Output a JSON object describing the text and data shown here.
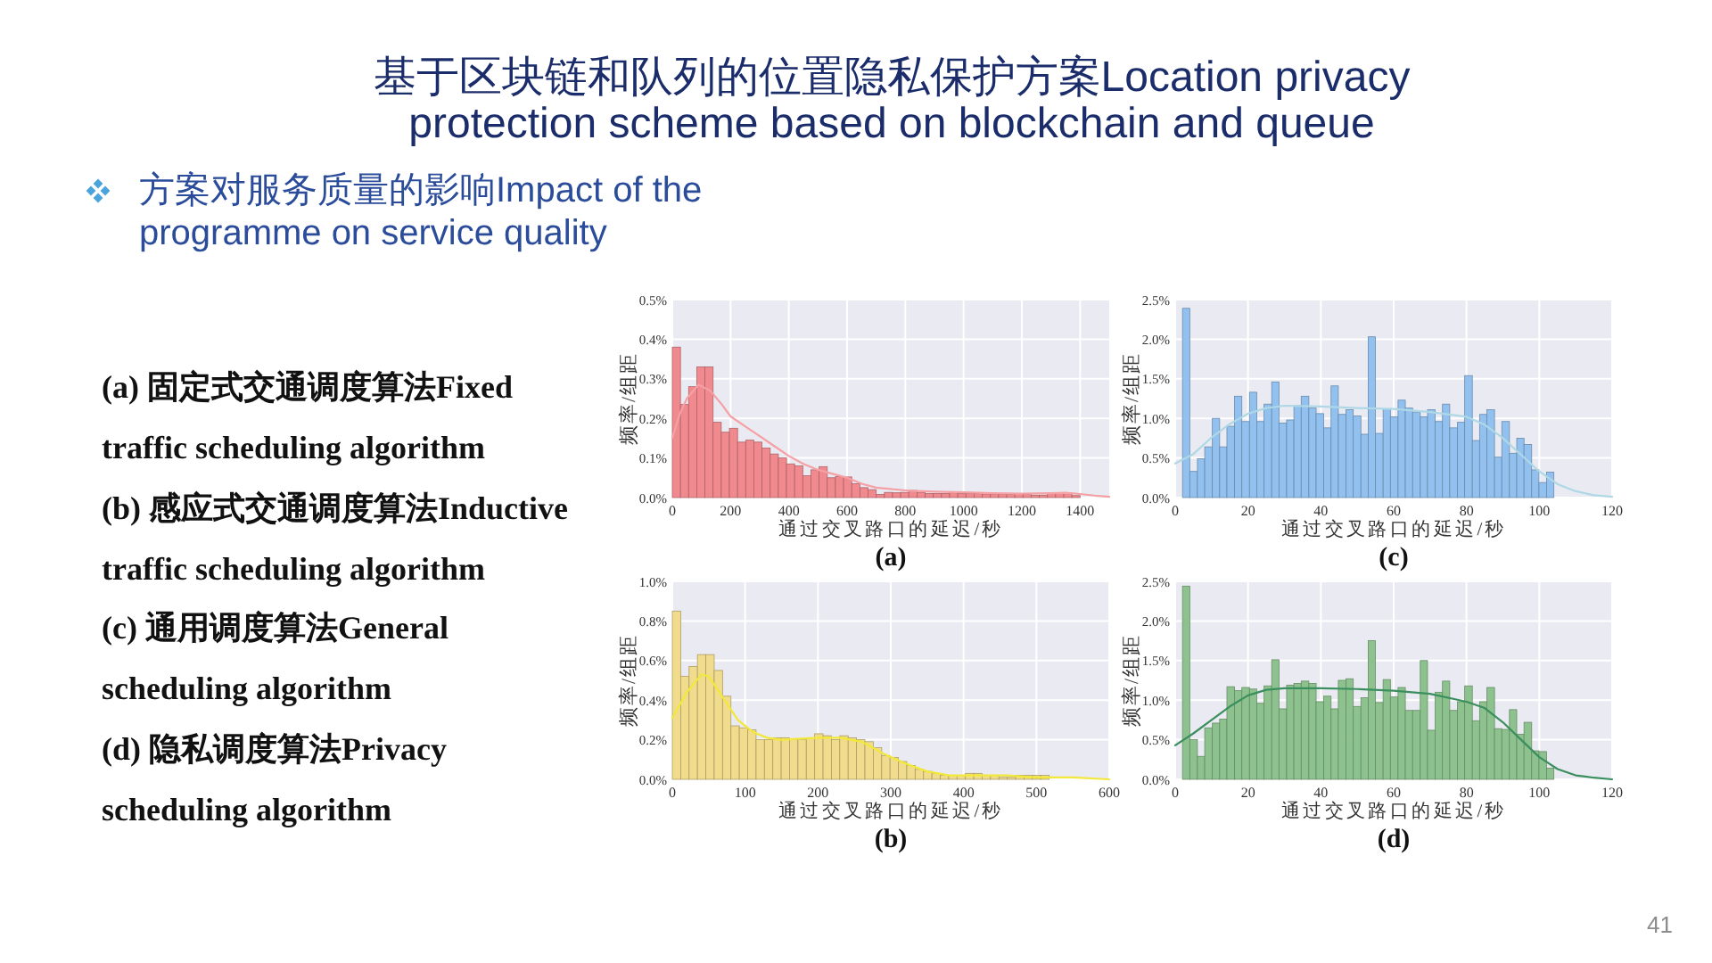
{
  "chart_data": [
    {
      "type": "other",
      "title": "基于区块链和队列的位置隐私保护方案Location privacy protection scheme based on blockchain and queue",
      "subtitle": "方案对服务质量的影响Impact of the programme on service quality",
      "annotations": [
        "(a) 固定式交通调度算法Fixed traffic scheduling algorithm",
        "(b) 感应式交通调度算法Inductive traffic scheduling algorithm",
        "(c) 通用调度算法General scheduling algorithm",
        "(d) 隐私调度算法Privacy scheduling algorithm",
        "41"
      ]
    },
    {
      "type": "histogram",
      "xlabel": "通过交叉路口的延迟/秒",
      "ylabel": "频率/组距",
      "annotations": [
        "(a)"
      ],
      "xlim": [
        0,
        1500
      ],
      "xticks": [
        0,
        200,
        400,
        600,
        800,
        1000,
        1200,
        1400
      ],
      "ylim": [
        0,
        0.5
      ],
      "yticks": [
        {
          "value": 0,
          "label": "0.0%"
        },
        {
          "value": 0.1,
          "label": "0.1%"
        },
        {
          "value": 0.2,
          "label": "0.2%"
        },
        {
          "value": 0.3,
          "label": "0.3%"
        },
        {
          "value": 0.4,
          "label": "0.4%"
        },
        {
          "value": 0.5,
          "label": "0.5%"
        }
      ],
      "grid": true,
      "bins": [
        0,
        28,
        56,
        84,
        112,
        140,
        168,
        196,
        224,
        252,
        280,
        308,
        336,
        364,
        392,
        420,
        448,
        476,
        504,
        532,
        560,
        588,
        616,
        644,
        672,
        700,
        728,
        756,
        784,
        812,
        840,
        868,
        896,
        924,
        952,
        980,
        1008,
        1036,
        1064,
        1092,
        1120,
        1148,
        1176,
        1204,
        1232,
        1260,
        1288,
        1316,
        1344,
        1372,
        1400
      ],
      "series": [
        {
          "type": "histogram",
          "color": "#f08a8e",
          "values": [
            0.38,
            0.235,
            0.28,
            0.33,
            0.33,
            0.19,
            0.165,
            0.175,
            0.14,
            0.145,
            0.14,
            0.125,
            0.11,
            0.1,
            0.085,
            0.08,
            0.055,
            0.07,
            0.078,
            0.05,
            0.053,
            0.052,
            0.035,
            0.025,
            0.02,
            0.008,
            0.013,
            0.012,
            0.013,
            0.018,
            0.013,
            0.01,
            0.01,
            0.01,
            0.012,
            0.01,
            0.01,
            0.01,
            0.009,
            0.009,
            0.009,
            0.008,
            0.01,
            0.008,
            0.006,
            0.006,
            0.012,
            0.012,
            0.011,
            0.005
          ]
        },
        {
          "type": "line",
          "color": "#f4a0a4",
          "x": [
            0,
            25,
            50,
            90,
            130,
            170,
            200,
            250,
            300,
            350,
            400,
            450,
            500,
            550,
            600,
            650,
            700,
            800,
            900,
            1000,
            1100,
            1200,
            1300,
            1350,
            1400,
            1450,
            1500
          ],
          "values": [
            0.15,
            0.21,
            0.25,
            0.285,
            0.27,
            0.235,
            0.205,
            0.18,
            0.155,
            0.13,
            0.105,
            0.085,
            0.07,
            0.06,
            0.05,
            0.035,
            0.025,
            0.018,
            0.015,
            0.013,
            0.011,
            0.01,
            0.011,
            0.012,
            0.009,
            0.005,
            0.002
          ]
        }
      ]
    },
    {
      "type": "histogram",
      "xlabel": "通过交叉路口的延迟/秒",
      "ylabel": "频率/组距",
      "annotations": [
        "(c)"
      ],
      "xlim": [
        0,
        120
      ],
      "xticks": [
        0,
        20,
        40,
        60,
        80,
        100,
        120
      ],
      "ylim": [
        0,
        2.5
      ],
      "yticks": [
        {
          "value": 0,
          "label": "0.0%"
        },
        {
          "value": 0.5,
          "label": "0.5%"
        },
        {
          "value": 1,
          "label": "1.0%"
        },
        {
          "value": 1.5,
          "label": "1.5%"
        },
        {
          "value": 2,
          "label": "2.0%"
        },
        {
          "value": 2.5,
          "label": "2.5%"
        }
      ],
      "grid": true,
      "bins": [
        2,
        4.0,
        6.1,
        8.1,
        10.2,
        12.2,
        14.2,
        16.3,
        18.3,
        20.4,
        22.4,
        24.4,
        26.5,
        28.5,
        30.6,
        32.6,
        34.6,
        36.7,
        38.7,
        40.8,
        42.8,
        44.8,
        46.9,
        48.9,
        51.0,
        53.0,
        55.0,
        57.1,
        59.1,
        61.2,
        63.2,
        65.2,
        67.3,
        69.3,
        71.4,
        73.4,
        75.4,
        77.5,
        79.5,
        81.6,
        83.6,
        85.6,
        87.7,
        89.7,
        91.8,
        93.8,
        95.8,
        97.9,
        99.9,
        102.0,
        104
      ],
      "series": [
        {
          "type": "histogram",
          "color": "#92c1ef",
          "values": [
            2.39,
            0.33,
            0.49,
            0.64,
            1.0,
            0.64,
            0.9,
            1.28,
            0.96,
            1.33,
            0.96,
            1.18,
            1.46,
            0.94,
            0.98,
            1.16,
            1.28,
            1.13,
            1.06,
            0.88,
            1.41,
            1.05,
            1.11,
            1.03,
            0.8,
            2.03,
            0.81,
            1.12,
            1.02,
            1.23,
            1.13,
            1.08,
            1.02,
            1.11,
            0.96,
            1.18,
            0.88,
            0.95,
            1.54,
            0.72,
            1.05,
            1.11,
            0.51,
            0.96,
            0.56,
            0.75,
            0.67,
            0.35,
            0.19,
            0.32
          ]
        },
        {
          "type": "line",
          "color": "#aed8e6",
          "x": [
            0,
            5,
            10,
            15,
            20,
            25,
            30,
            40,
            50,
            60,
            70,
            80,
            85,
            90,
            95,
            100,
            105,
            110,
            115,
            120
          ],
          "values": [
            0.43,
            0.55,
            0.76,
            0.93,
            1.06,
            1.13,
            1.16,
            1.15,
            1.13,
            1.12,
            1.08,
            1.02,
            0.92,
            0.75,
            0.54,
            0.33,
            0.17,
            0.08,
            0.03,
            0.01
          ]
        }
      ]
    },
    {
      "type": "histogram",
      "xlabel": "通过交叉路口的延迟/秒",
      "ylabel": "频率/组距",
      "annotations": [
        "(b)"
      ],
      "xlim": [
        0,
        600
      ],
      "xticks": [
        0,
        100,
        200,
        300,
        400,
        500,
        600
      ],
      "ylim": [
        0,
        1.0
      ],
      "yticks": [
        {
          "value": 0,
          "label": "0.0%"
        },
        {
          "value": 0.2,
          "label": "0.2%"
        },
        {
          "value": 0.4,
          "label": "0.4%"
        },
        {
          "value": 0.6,
          "label": "0.6%"
        },
        {
          "value": 0.8,
          "label": "0.8%"
        },
        {
          "value": 1.0,
          "label": "1.0%"
        }
      ],
      "grid": true,
      "bins": [
        0,
        11.5,
        23,
        34.5,
        46,
        57.5,
        69,
        80.5,
        92,
        103.5,
        115,
        126.5,
        138,
        149.5,
        161,
        172.5,
        184,
        195.5,
        207,
        218.5,
        230,
        241.5,
        253,
        264.5,
        276,
        287.5,
        299,
        310.5,
        322,
        333.5,
        345,
        356.5,
        368,
        379.5,
        391,
        402.5,
        414,
        425.5,
        437,
        448.5,
        460,
        471.5,
        483,
        494.5,
        506,
        517.5
      ],
      "series": [
        {
          "type": "histogram",
          "color": "#f0dc8c",
          "values": [
            0.85,
            0.52,
            0.57,
            0.63,
            0.63,
            0.55,
            0.42,
            0.27,
            0.26,
            0.25,
            0.2,
            0.2,
            0.21,
            0.21,
            0.2,
            0.2,
            0.21,
            0.23,
            0.22,
            0.2,
            0.22,
            0.21,
            0.2,
            0.19,
            0.16,
            0.12,
            0.11,
            0.09,
            0.07,
            0.05,
            0.04,
            0.03,
            0.02,
            0.02,
            0.02,
            0.03,
            0.03,
            0.02,
            0.02,
            0.01,
            0.01,
            0.02,
            0.02,
            0.02,
            0.02
          ]
        },
        {
          "type": "line",
          "color": "#f2e83a",
          "x": [
            0,
            20,
            40,
            50,
            70,
            90,
            110,
            130,
            150,
            200,
            230,
            260,
            290,
            320,
            350,
            380,
            420,
            460,
            500,
            550,
            600
          ],
          "values": [
            0.31,
            0.44,
            0.53,
            0.52,
            0.41,
            0.3,
            0.24,
            0.21,
            0.2,
            0.21,
            0.21,
            0.19,
            0.13,
            0.08,
            0.04,
            0.02,
            0.02,
            0.02,
            0.01,
            0.01,
            0
          ]
        }
      ]
    },
    {
      "type": "histogram",
      "xlabel": "通过交叉路口的延迟/秒",
      "ylabel": "频率/组距",
      "annotations": [
        "(d)"
      ],
      "xlim": [
        0,
        120
      ],
      "xticks": [
        0,
        20,
        40,
        60,
        80,
        100,
        120
      ],
      "ylim": [
        0,
        2.5
      ],
      "yticks": [
        {
          "value": 0,
          "label": "0.0%"
        },
        {
          "value": 0.5,
          "label": "0.5%"
        },
        {
          "value": 1,
          "label": "1.0%"
        },
        {
          "value": 1.5,
          "label": "1.5%"
        },
        {
          "value": 2,
          "label": "2.0%"
        },
        {
          "value": 2.5,
          "label": "2.5%"
        }
      ],
      "grid": true,
      "bins": [
        2,
        4.0,
        6.1,
        8.1,
        10.2,
        12.2,
        14.2,
        16.3,
        18.3,
        20.4,
        22.4,
        24.4,
        26.5,
        28.5,
        30.6,
        32.6,
        34.6,
        36.7,
        38.7,
        40.8,
        42.8,
        44.8,
        46.9,
        48.9,
        51.0,
        53.0,
        55.0,
        57.1,
        59.1,
        61.2,
        63.2,
        65.2,
        67.3,
        69.3,
        71.4,
        73.4,
        75.4,
        77.5,
        79.5,
        81.6,
        83.6,
        85.6,
        87.7,
        89.7,
        91.8,
        93.8,
        95.8,
        97.9,
        99.9,
        102.0,
        104
      ],
      "series": [
        {
          "type": "histogram",
          "color": "#8dc28e",
          "values": [
            2.44,
            0.5,
            0.29,
            0.65,
            0.71,
            0.76,
            1.17,
            1.12,
            1.16,
            1.14,
            0.96,
            1.18,
            1.51,
            0.89,
            1.19,
            1.21,
            1.24,
            1.21,
            0.98,
            1.05,
            0.89,
            1.25,
            1.27,
            0.92,
            1.03,
            1.75,
            0.97,
            1.26,
            1.04,
            1.16,
            0.87,
            0.87,
            1.5,
            0.62,
            1.1,
            1.24,
            0.87,
            0.98,
            1.18,
            0.74,
            0.98,
            1.16,
            0.64,
            0.63,
            0.88,
            0.57,
            0.72,
            0.36,
            0.35,
            0.14
          ]
        },
        {
          "type": "line",
          "color": "#3b8f5e",
          "x": [
            0,
            5,
            10,
            15,
            20,
            25,
            30,
            40,
            50,
            60,
            70,
            80,
            85,
            90,
            95,
            100,
            105,
            110,
            115,
            120
          ],
          "values": [
            0.43,
            0.58,
            0.75,
            0.92,
            1.06,
            1.13,
            1.15,
            1.15,
            1.14,
            1.12,
            1.08,
            0.98,
            0.9,
            0.72,
            0.5,
            0.28,
            0.13,
            0.05,
            0.02,
            0
          ]
        }
      ]
    }
  ]
}
